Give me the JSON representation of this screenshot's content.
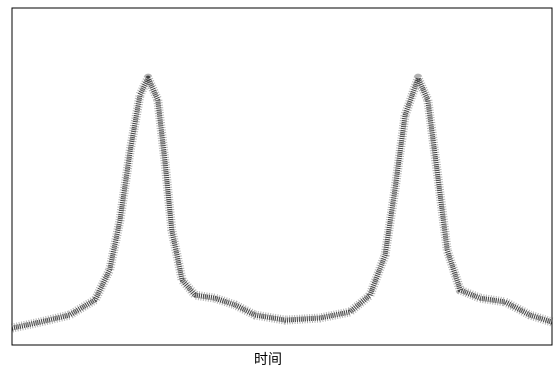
{
  "chart_data": {
    "type": "line",
    "x_label": "时间",
    "x": [
      0,
      5.2,
      10.7,
      15.4,
      18.1,
      20,
      21.9,
      23.7,
      25.2,
      27,
      28.3,
      29.6,
      31.5,
      33.9,
      37.6,
      41.3,
      45,
      50.6,
      57,
      62.6,
      66.3,
      69.1,
      70.9,
      72.8,
      75.2,
      77,
      78.7,
      80.6,
      83,
      86.7,
      91.3,
      95.9,
      100
    ],
    "series": [
      {
        "color": "#222222",
        "values": [
          5,
          6.8,
          8.9,
          13.4,
          22.3,
          37.1,
          57.9,
          74.2,
          79.2,
          72.7,
          54.9,
          34.1,
          19.3,
          14.8,
          13.9,
          11.9,
          8.9,
          7.4,
          8,
          9.8,
          14.8,
          26.7,
          46,
          68.2,
          79.2,
          72.7,
          51.9,
          28.2,
          16.3,
          13.9,
          12.8,
          8.9,
          6.8
        ]
      }
    ],
    "xlim": [
      0,
      100
    ],
    "ylim": [
      0,
      100
    ]
  }
}
